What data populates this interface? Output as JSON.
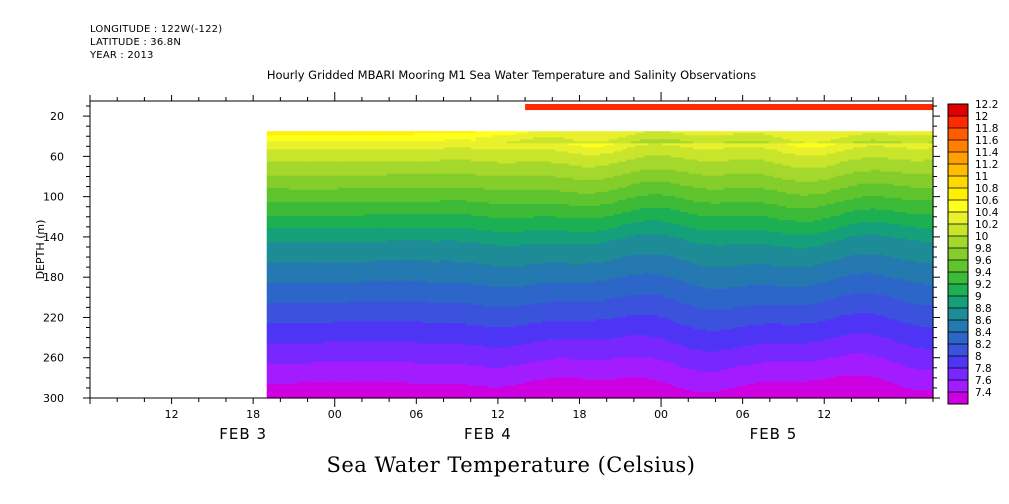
{
  "header": {
    "longitude": "LONGITUDE : 122W(-122)",
    "latitude": "LATITUDE : 36.8N",
    "year": "YEAR : 2013"
  },
  "title": "Hourly Gridded MBARI Mooring M1 Sea Water Temperature and Salinity Observations",
  "bottom_title": "Sea Water Temperature (Celsius)",
  "colors": {
    "palette": [
      "#cc00e0",
      "#a31cff",
      "#7828ff",
      "#4f35f5",
      "#3a52dc",
      "#2c66c8",
      "#2479b0",
      "#1e8c96",
      "#15a07a",
      "#1db052",
      "#3cba38",
      "#5fc42e",
      "#85cd2b",
      "#a5d82c",
      "#c8e52c",
      "#e8f12c",
      "#ffff1c",
      "#fff000",
      "#ffd800",
      "#ffbd00",
      "#ffa000",
      "#ff8000",
      "#ff5c00",
      "#ff2a00",
      "#e00000",
      "#a80000"
    ]
  },
  "chart_data": {
    "type": "heatmap",
    "title": "Hourly Gridded MBARI Mooring M1 Sea Water Temperature and Salinity Observations",
    "xlabel": "",
    "ylabel": "DEPTH (m)",
    "x_ticks_hour": [
      "12",
      "18",
      "00",
      "06",
      "12",
      "18",
      "00",
      "06",
      "12"
    ],
    "x_ticks_day": [
      "FEB 3",
      "FEB 4",
      "FEB 5"
    ],
    "y_ticks": [
      "20",
      "60",
      "100",
      "140",
      "180",
      "220",
      "260",
      "300"
    ],
    "ylim": [
      300,
      5
    ],
    "xlim": [
      "2013-02-03T06:00",
      "2013-02-05T20:00"
    ],
    "colorbar_labels": [
      "12.2",
      "12",
      "11.8",
      "11.6",
      "11.4",
      "11.2",
      "11",
      "10.8",
      "10.6",
      "10.4",
      "10.2",
      "10",
      "9.8",
      "9.6",
      "9.4",
      "9.2",
      "9",
      "8.8",
      "8.6",
      "8.4",
      "8.2",
      "8",
      "7.8",
      "7.6",
      "7.4"
    ],
    "colorbar_min": 7.4,
    "colorbar_max": 12.2,
    "colorbar_step": 0.2,
    "surface_depth": 11,
    "surface_start": "2013-02-04T14:00",
    "surface_temp": 12.1,
    "profile_start": "2013-02-03T19:00",
    "profile_top_depth": 35,
    "profile_depths": [
      35,
      45,
      55,
      65,
      75,
      85,
      95,
      105,
      115,
      125,
      135,
      145,
      155,
      165,
      175,
      185,
      195,
      205,
      215,
      225,
      235,
      245,
      255,
      265,
      275,
      285,
      295,
      300
    ],
    "profile_temps": [
      10.9,
      10.6,
      10.35,
      10.2,
      10.05,
      9.9,
      9.75,
      9.6,
      9.45,
      9.3,
      9.15,
      9.0,
      8.9,
      8.8,
      8.7,
      8.6,
      8.5,
      8.4,
      8.3,
      8.2,
      8.1,
      8.0,
      7.9,
      7.8,
      7.7,
      7.6,
      7.5,
      7.45
    ]
  }
}
